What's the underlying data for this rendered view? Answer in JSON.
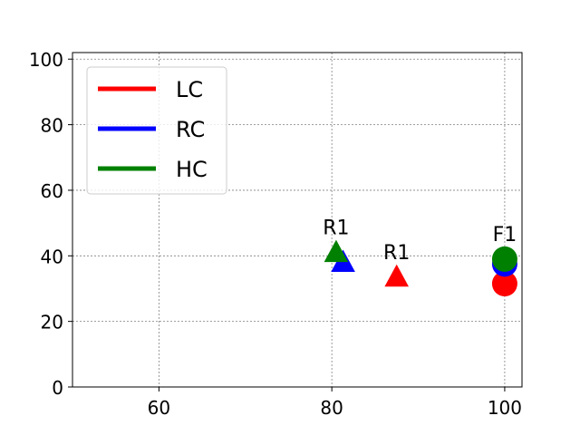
{
  "chart_data": {
    "type": "scatter",
    "title": "",
    "xlabel": "",
    "ylabel": "",
    "xlim": [
      50,
      102
    ],
    "ylim": [
      0,
      102
    ],
    "xticks": [
      60,
      80,
      100
    ],
    "yticks": [
      0,
      20,
      40,
      60,
      80,
      100
    ],
    "grid": true,
    "legend_position": "top-left",
    "series": [
      {
        "name": "LC",
        "color": "#ff0000",
        "points": [
          {
            "x": 87.5,
            "y": 33.5,
            "marker": "triangle",
            "label": "R1"
          },
          {
            "x": 100,
            "y": 31.5,
            "marker": "circle",
            "label": ""
          }
        ]
      },
      {
        "name": "RC",
        "color": "#0000ff",
        "points": [
          {
            "x": 81.3,
            "y": 38.0,
            "marker": "triangle",
            "label": ""
          },
          {
            "x": 100,
            "y": 37.5,
            "marker": "circle",
            "label": ""
          }
        ]
      },
      {
        "name": "HC",
        "color": "#008000",
        "points": [
          {
            "x": 80.5,
            "y": 41.0,
            "marker": "triangle",
            "label": "R1"
          },
          {
            "x": 100,
            "y": 39.0,
            "marker": "circle",
            "label": "F1"
          }
        ]
      }
    ]
  }
}
